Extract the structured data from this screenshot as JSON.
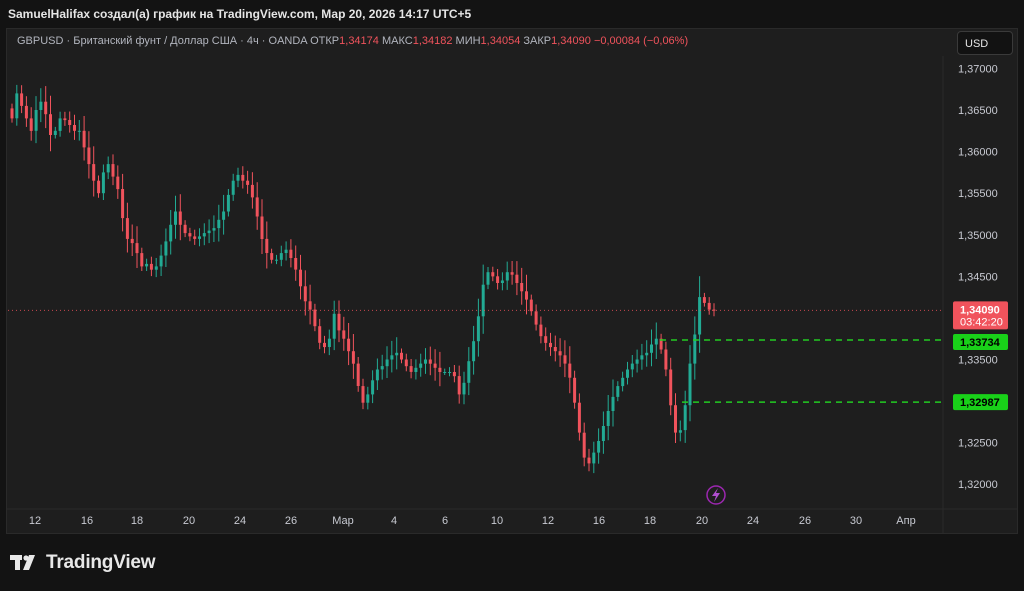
{
  "header": {
    "title": "SamuelHalifax создал(а) график на TradingView.com, Мар 20, 2026 14:17 UTC+5"
  },
  "legend": {
    "symbol_text": "GBPUSD · Британский фунт / Доллар США · 4ч · OANDA",
    "open_label": "ОТКР",
    "open_value": "1,34174",
    "high_label": "МАКС",
    "high_value": "1,34182",
    "low_label": "МИН",
    "low_value": "1,34054",
    "close_label": "ЗАКР",
    "close_value": "1,34090",
    "change": "−0,00084 (−0,06%)"
  },
  "currency_button": "USD",
  "colors": {
    "up": "#22ab94",
    "down": "#f0535c",
    "level_line": "#22cc22",
    "level_badge": "#19d119",
    "price_badge": "#f0535c"
  },
  "price_axis": {
    "ticks": [
      "1,37000",
      "1,36500",
      "1,36000",
      "1,35500",
      "1,35000",
      "1,34500",
      "1,33500",
      "1,32500",
      "1,32000"
    ],
    "tick_values": [
      1.37,
      1.365,
      1.36,
      1.355,
      1.35,
      1.345,
      1.335,
      1.325,
      1.32
    ]
  },
  "time_axis": {
    "labels": [
      "12",
      "16",
      "18",
      "20",
      "24",
      "26",
      "Мар",
      "4",
      "6",
      "10",
      "12",
      "16",
      "18",
      "20",
      "24",
      "26",
      "30",
      "Апр"
    ]
  },
  "badges": {
    "last_price": "1,34090",
    "countdown": "03:42:20",
    "level_1": "1,33734",
    "level_2": "1,32987"
  },
  "footer": {
    "brand": "TradingView"
  },
  "chart_data": {
    "type": "candlestick",
    "symbol": "GBPUSD",
    "timeframe": "4ч",
    "y_range": [
      1.3175,
      1.3715
    ],
    "last_price": 1.3409,
    "horizontal_levels": [
      1.33734,
      1.32987
    ],
    "close_path": [
      1.364,
      1.367,
      1.3655,
      1.364,
      1.3625,
      1.365,
      1.366,
      1.3645,
      1.362,
      1.3625,
      1.364,
      1.3638,
      1.3632,
      1.3625,
      1.3625,
      1.3605,
      1.3585,
      1.3565,
      1.355,
      1.3575,
      1.3585,
      1.357,
      1.3555,
      1.352,
      1.3495,
      1.349,
      1.3478,
      1.3462,
      1.3465,
      1.3458,
      1.3462,
      1.3475,
      1.3492,
      1.3512,
      1.3528,
      1.3512,
      1.3502,
      1.3498,
      1.3495,
      1.3498,
      1.3502,
      1.3505,
      1.3508,
      1.3518,
      1.3528,
      1.3548,
      1.3565,
      1.3572,
      1.3565,
      1.356,
      1.3545,
      1.3522,
      1.3495,
      1.3478,
      1.347,
      1.347,
      1.3478,
      1.3482,
      1.3472,
      1.3458,
      1.3438,
      1.342,
      1.341,
      1.339,
      1.337,
      1.3365,
      1.3375,
      1.3405,
      1.3385,
      1.3375,
      1.336,
      1.3345,
      1.3318,
      1.3298,
      1.3308,
      1.3325,
      1.3338,
      1.3342,
      1.335,
      1.3355,
      1.3358,
      1.335,
      1.3342,
      1.3335,
      1.334,
      1.3345,
      1.335,
      1.3345,
      1.334,
      1.3335,
      1.3335,
      1.3335,
      1.333,
      1.3308,
      1.3322,
      1.3348,
      1.3372,
      1.3402,
      1.344,
      1.3455,
      1.345,
      1.3442,
      1.3445,
      1.3455,
      1.3452,
      1.3442,
      1.3432,
      1.3422,
      1.3408,
      1.3392,
      1.3378,
      1.337,
      1.3365,
      1.336,
      1.3355,
      1.3345,
      1.3328,
      1.3298,
      1.3262,
      1.3232,
      1.3225,
      1.3238,
      1.3252,
      1.327,
      1.3288,
      1.3305,
      1.3318,
      1.3328,
      1.3338,
      1.3345,
      1.335,
      1.3355,
      1.3358,
      1.3368,
      1.3375,
      1.3362,
      1.3338,
      1.3295,
      1.3262,
      1.3265,
      1.3295,
      1.3345,
      1.338,
      1.3425,
      1.3418,
      1.341,
      1.3409
    ]
  }
}
